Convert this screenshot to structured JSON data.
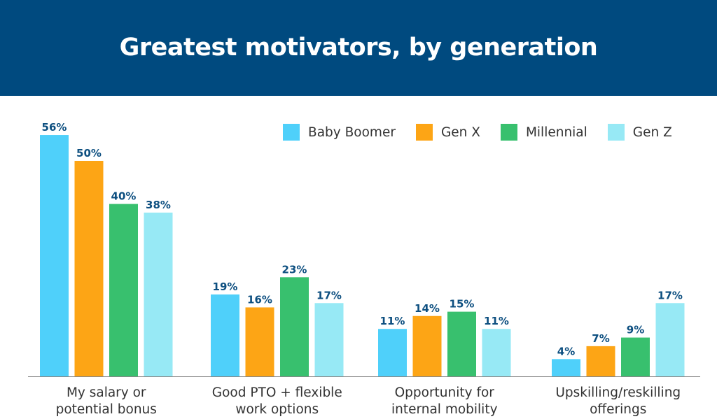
{
  "chart_data": {
    "type": "bar",
    "title": "Greatest motivators, by generation",
    "xlabel": "",
    "ylabel": "",
    "ylim": [
      0,
      60
    ],
    "grid": false,
    "legend_position": "top-right",
    "categories": [
      [
        "My salary or",
        "potential bonus"
      ],
      [
        "Good PTO + flexible",
        "work options"
      ],
      [
        "Opportunity for",
        "internal mobility"
      ],
      [
        "Upskilling/reskilling",
        "offerings"
      ]
    ],
    "series": [
      {
        "name": "Baby Boomer",
        "color": "#4fd0fa",
        "values": [
          56,
          19,
          11,
          4
        ]
      },
      {
        "name": "Gen X",
        "color": "#fda515",
        "values": [
          50,
          16,
          14,
          7
        ]
      },
      {
        "name": "Millennial",
        "color": "#38c06e",
        "values": [
          40,
          23,
          15,
          9
        ]
      },
      {
        "name": "Gen Z",
        "color": "#97e9f5",
        "values": [
          38,
          17,
          11,
          17
        ]
      }
    ],
    "value_suffix": "%"
  },
  "colors": {
    "header_bg": "#004a7f",
    "value_label": "#0d4f80",
    "axis": "#888888"
  }
}
